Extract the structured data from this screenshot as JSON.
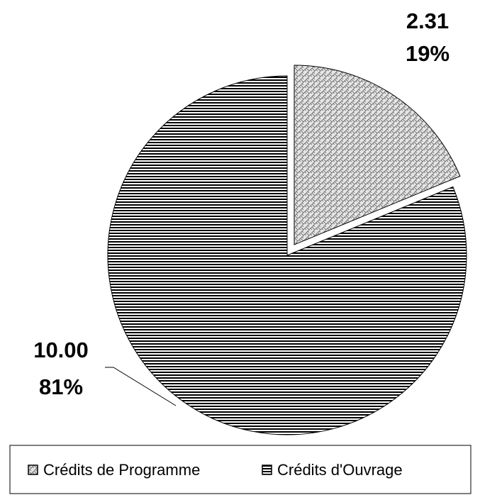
{
  "chart_data": {
    "type": "pie",
    "categories": [
      "Crédits de Programme",
      "Crédits d'Ouvrage"
    ],
    "values": [
      2.31,
      10.0
    ],
    "value_labels": [
      "2.31",
      "10.00"
    ],
    "percents": [
      19,
      81
    ],
    "percent_labels": [
      "19%",
      "81%"
    ],
    "legend": "bottom"
  }
}
